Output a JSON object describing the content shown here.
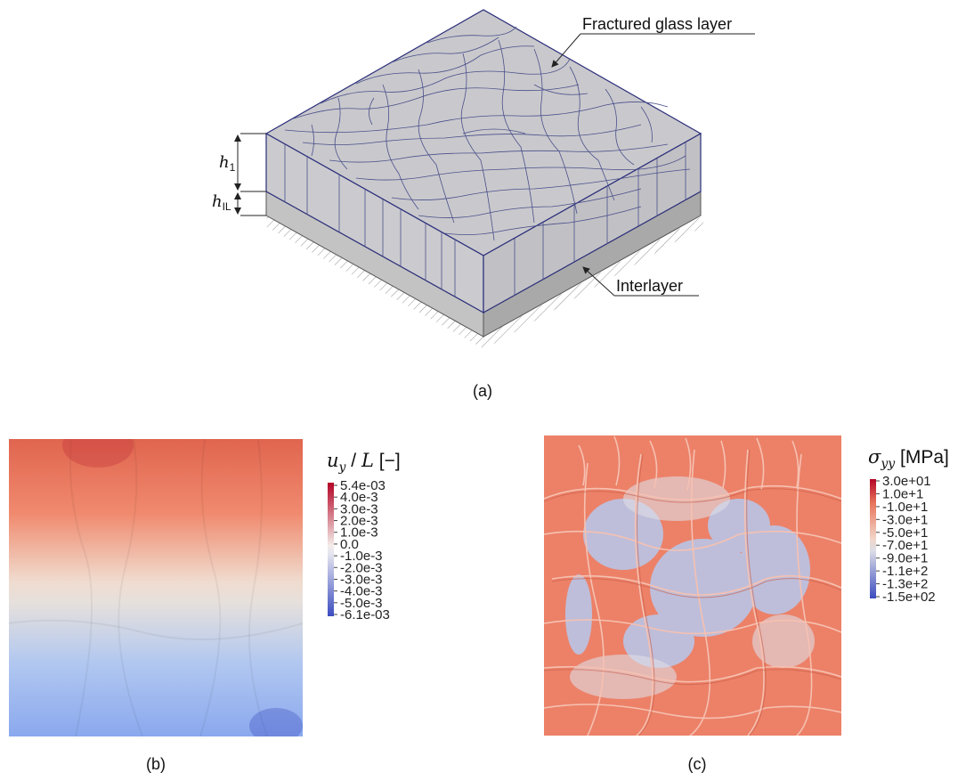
{
  "panel_a": {
    "caption": "(a)",
    "label_glass": "Fractured glass layer",
    "label_interlayer": "Interlayer",
    "dim_h1_var": "h",
    "dim_h1_sub": "1",
    "dim_hil_var": "h",
    "dim_hil_sub": "IL"
  },
  "panel_b": {
    "caption": "(b)",
    "colorbar_title_var": "u",
    "colorbar_title_sub": "y",
    "colorbar_title_rest": " / ",
    "colorbar_title_L": "L",
    "colorbar_title_unit": " [−]",
    "ticks": [
      "5.4e-03",
      "4.0e-3",
      "3.0e-3",
      "2.0e-3",
      "1.0e-3",
      "0.0",
      "-1.0e-3",
      "-2.0e-3",
      "-3.0e-3",
      "-4.0e-3",
      "-5.0e-3",
      "-6.1e-03"
    ],
    "colormap": [
      "#b40426",
      "#f7f7f7",
      "#3b4cc0"
    ]
  },
  "panel_c": {
    "caption": "(c)",
    "colorbar_title_var": "σ",
    "colorbar_title_sub": "yy",
    "colorbar_title_unit": " [MPa]",
    "ticks": [
      "3.0e+01",
      "1.0e+1",
      "-1.0e+1",
      "-3.0e+1",
      "-5.0e+1",
      "-7.0e+1",
      "-9.0e+1",
      "-1.1e+2",
      "-1.3e+2",
      "-1.5e+02"
    ],
    "colormap": [
      "#b40426",
      "#f7f7f7",
      "#3b4cc0"
    ]
  }
}
